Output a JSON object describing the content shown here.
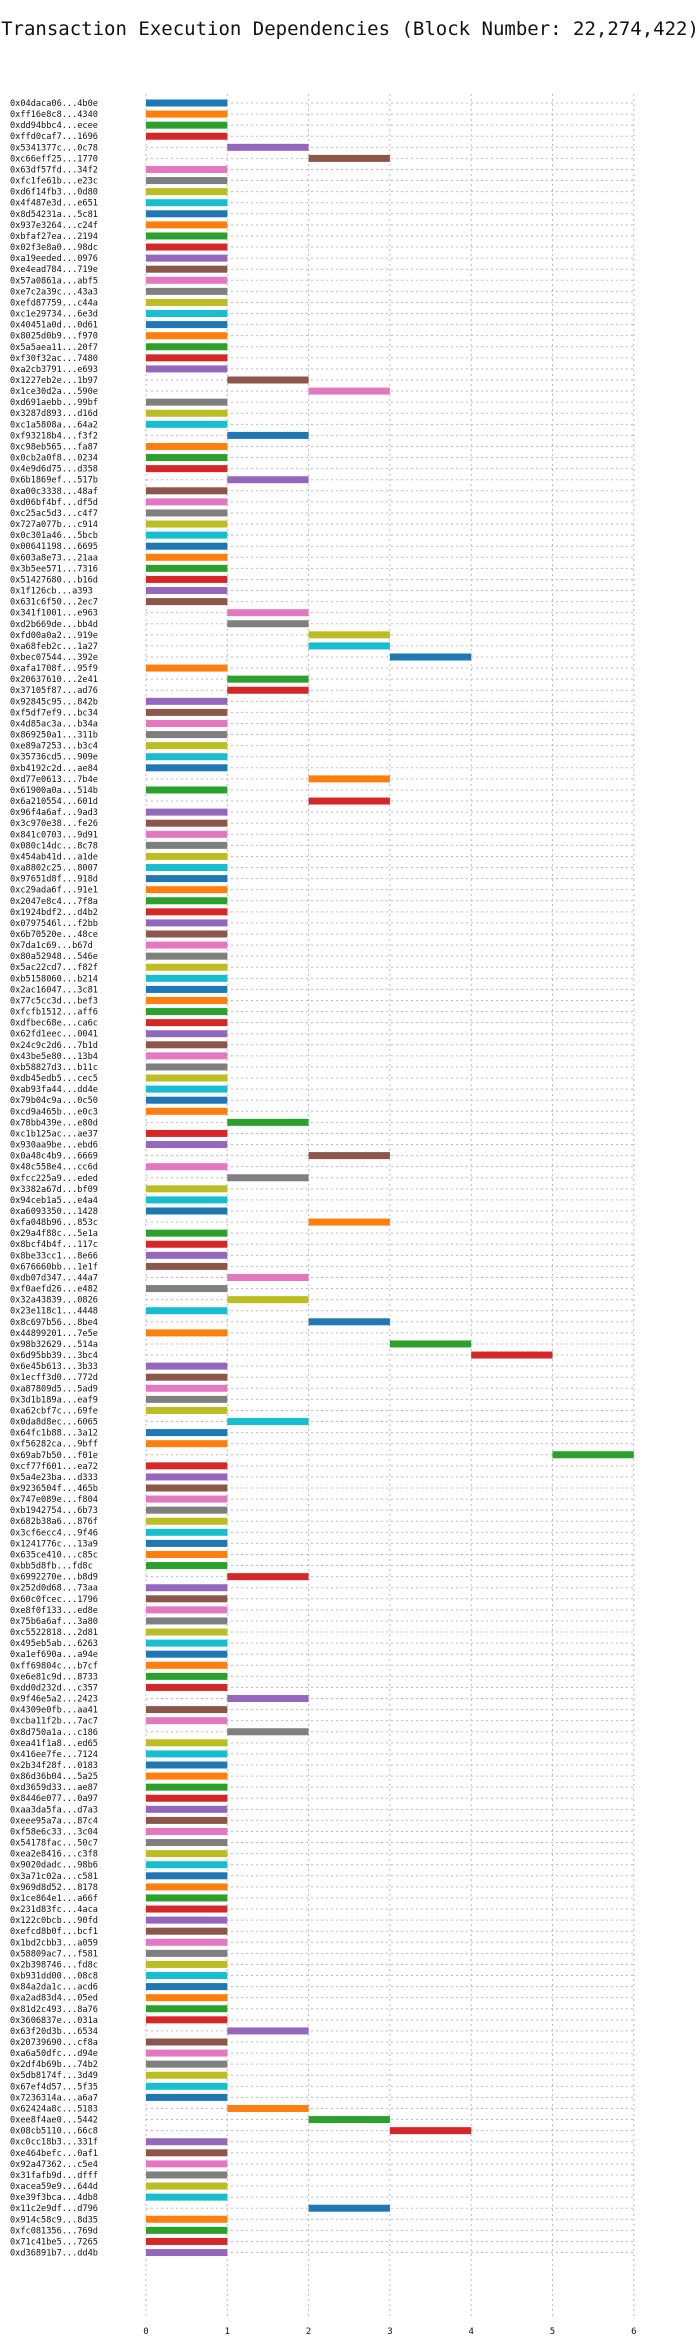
{
  "chart_data": {
    "type": "bar",
    "orientation": "horizontal-gantt",
    "title": "Transaction Execution Dependencies (Block Number: 22,274,422)",
    "xlabel": "",
    "ylabel": "",
    "xlim": [
      0,
      6
    ],
    "xticks": [
      0,
      1,
      2,
      3,
      4,
      5,
      6
    ],
    "grid": true,
    "palette": [
      "#1f77b4",
      "#ff7f0e",
      "#2ca02c",
      "#d62728",
      "#9467bd",
      "#8c564b",
      "#e377c2",
      "#7f7f7f",
      "#bcbd22",
      "#17becf"
    ],
    "transactions": [
      {
        "label": "0x04daca06...4b0e",
        "start": 0,
        "end": 1
      },
      {
        "label": "0xff16e8c8...4340",
        "start": 0,
        "end": 1
      },
      {
        "label": "0xdd94bbc4...ecee",
        "start": 0,
        "end": 1
      },
      {
        "label": "0xffd0caf7...1696",
        "start": 0,
        "end": 1
      },
      {
        "label": "0x5341377c...0c78",
        "start": 1,
        "end": 2
      },
      {
        "label": "0xc66eff25...1770",
        "start": 2,
        "end": 3
      },
      {
        "label": "0x63df57fd...34f2",
        "start": 0,
        "end": 1
      },
      {
        "label": "0xfc1fe61b...e23c",
        "start": 0,
        "end": 1
      },
      {
        "label": "0xd6f14fb3...0d80",
        "start": 0,
        "end": 1
      },
      {
        "label": "0x4f487e3d...e651",
        "start": 0,
        "end": 1
      },
      {
        "label": "0x8d54231a...5c81",
        "start": 0,
        "end": 1
      },
      {
        "label": "0x937e3264...c24f",
        "start": 0,
        "end": 1
      },
      {
        "label": "0xbfaf27ea...2194",
        "start": 0,
        "end": 1
      },
      {
        "label": "0x02f3e8a0...98dc",
        "start": 0,
        "end": 1
      },
      {
        "label": "0xa19eeded...0976",
        "start": 0,
        "end": 1
      },
      {
        "label": "0xe4ead784...719e",
        "start": 0,
        "end": 1
      },
      {
        "label": "0x57a0861a...abf5",
        "start": 0,
        "end": 1
      },
      {
        "label": "0xe7c2a39c...43a3",
        "start": 0,
        "end": 1
      },
      {
        "label": "0xefd87759...c44a",
        "start": 0,
        "end": 1
      },
      {
        "label": "0xc1e29734...6e3d",
        "start": 0,
        "end": 1
      },
      {
        "label": "0x40451a0d...0d61",
        "start": 0,
        "end": 1
      },
      {
        "label": "0x8025d0b9...f970",
        "start": 0,
        "end": 1
      },
      {
        "label": "0x5a5aea11...20f7",
        "start": 0,
        "end": 1
      },
      {
        "label": "0xf30f32ac...7480",
        "start": 0,
        "end": 1
      },
      {
        "label": "0xa2cb3791...e693",
        "start": 0,
        "end": 1
      },
      {
        "label": "0x1227eb2e...1b97",
        "start": 1,
        "end": 2
      },
      {
        "label": "0x1ce30d2a...590e",
        "start": 2,
        "end": 3
      },
      {
        "label": "0xd691aebb...99bf",
        "start": 0,
        "end": 1
      },
      {
        "label": "0x3287d893...d16d",
        "start": 0,
        "end": 1
      },
      {
        "label": "0xc1a5808a...64a2",
        "start": 0,
        "end": 1
      },
      {
        "label": "0xf93218b4...f3f2",
        "start": 1,
        "end": 2
      },
      {
        "label": "0xc98eb565...fa87",
        "start": 0,
        "end": 1
      },
      {
        "label": "0x0cb2a0f8...0234",
        "start": 0,
        "end": 1
      },
      {
        "label": "0x4e9d6d75...d358",
        "start": 0,
        "end": 1
      },
      {
        "label": "0x6b1869ef...517b",
        "start": 1,
        "end": 2
      },
      {
        "label": "0xa00c3338...48af",
        "start": 0,
        "end": 1
      },
      {
        "label": "0xd06bf4bf...df5d",
        "start": 0,
        "end": 1
      },
      {
        "label": "0xc25ac5d3...c4f7",
        "start": 0,
        "end": 1
      },
      {
        "label": "0x727a077b...c914",
        "start": 0,
        "end": 1
      },
      {
        "label": "0x0c301a46...5bcb",
        "start": 0,
        "end": 1
      },
      {
        "label": "0x00641198...6695",
        "start": 0,
        "end": 1
      },
      {
        "label": "0x603a8e73...21aa",
        "start": 0,
        "end": 1
      },
      {
        "label": "0x3b5ee571...7316",
        "start": 0,
        "end": 1
      },
      {
        "label": "0x51427680...b16d",
        "start": 0,
        "end": 1
      },
      {
        "label": "0x1f126cb...a393",
        "start": 0,
        "end": 1
      },
      {
        "label": "0x631c6f50...2ec7",
        "start": 0,
        "end": 1
      },
      {
        "label": "0x341f1001...e963",
        "start": 1,
        "end": 2
      },
      {
        "label": "0xd2b669de...bb4d",
        "start": 1,
        "end": 2
      },
      {
        "label": "0xfd00a0a2...919e",
        "start": 2,
        "end": 3
      },
      {
        "label": "0xa68feb2c...1a27",
        "start": 2,
        "end": 3
      },
      {
        "label": "0xbec07544...392e",
        "start": 3,
        "end": 4
      },
      {
        "label": "0xafa1708f...95f9",
        "start": 0,
        "end": 1
      },
      {
        "label": "0x20637610...2e41",
        "start": 1,
        "end": 2
      },
      {
        "label": "0x37105f87...ad76",
        "start": 1,
        "end": 2
      },
      {
        "label": "0x92845c95...842b",
        "start": 0,
        "end": 1
      },
      {
        "label": "0xf5df7ef9...bc34",
        "start": 0,
        "end": 1
      },
      {
        "label": "0x4d85ac3a...b34a",
        "start": 0,
        "end": 1
      },
      {
        "label": "0x869250a1...311b",
        "start": 0,
        "end": 1
      },
      {
        "label": "0xe89a7253...b3c4",
        "start": 0,
        "end": 1
      },
      {
        "label": "0x35736cd5...909e",
        "start": 0,
        "end": 1
      },
      {
        "label": "0xb4192c2d...ae84",
        "start": 0,
        "end": 1
      },
      {
        "label": "0xd77e0613...7b4e",
        "start": 2,
        "end": 3
      },
      {
        "label": "0x61900a0a...514b",
        "start": 0,
        "end": 1
      },
      {
        "label": "0x6a210554...601d",
        "start": 2,
        "end": 3
      },
      {
        "label": "0x96f4a6af...9ad3",
        "start": 0,
        "end": 1
      },
      {
        "label": "0x3c970e38...fe26",
        "start": 0,
        "end": 1
      },
      {
        "label": "0x841c0703...9d91",
        "start": 0,
        "end": 1
      },
      {
        "label": "0x080c14dc...8c78",
        "start": 0,
        "end": 1
      },
      {
        "label": "0x454ab41d...a1de",
        "start": 0,
        "end": 1
      },
      {
        "label": "0xa8802c25...8007",
        "start": 0,
        "end": 1
      },
      {
        "label": "0x97651d8f...918d",
        "start": 0,
        "end": 1
      },
      {
        "label": "0xc29ada6f...91e1",
        "start": 0,
        "end": 1
      },
      {
        "label": "0x2047e8c4...7f8a",
        "start": 0,
        "end": 1
      },
      {
        "label": "0x1924bdf2...d4b2",
        "start": 0,
        "end": 1
      },
      {
        "label": "0x0797546l...f2bb",
        "start": 0,
        "end": 1
      },
      {
        "label": "0x6b70520e...48ce",
        "start": 0,
        "end": 1
      },
      {
        "label": "0x7da1c69...b67d",
        "start": 0,
        "end": 1
      },
      {
        "label": "0x80a52948...546e",
        "start": 0,
        "end": 1
      },
      {
        "label": "0x5ac22cd7...f82f",
        "start": 0,
        "end": 1
      },
      {
        "label": "0xb5158060...b214",
        "start": 0,
        "end": 1
      },
      {
        "label": "0x2ac16047...3c81",
        "start": 0,
        "end": 1
      },
      {
        "label": "0x77c5cc3d...bef3",
        "start": 0,
        "end": 1
      },
      {
        "label": "0xfcfb1512...aff6",
        "start": 0,
        "end": 1
      },
      {
        "label": "0xdfbec68e...ca6c",
        "start": 0,
        "end": 1
      },
      {
        "label": "0x62fd1eec...0041",
        "start": 0,
        "end": 1
      },
      {
        "label": "0x24c9c2d6...7b1d",
        "start": 0,
        "end": 1
      },
      {
        "label": "0x43be5e80...13b4",
        "start": 0,
        "end": 1
      },
      {
        "label": "0xb58827d3...b11c",
        "start": 0,
        "end": 1
      },
      {
        "label": "0xdb45edb5...cec5",
        "start": 0,
        "end": 1
      },
      {
        "label": "0xab93fa44...dd4e",
        "start": 0,
        "end": 1
      },
      {
        "label": "0x79b04c9a...0c50",
        "start": 0,
        "end": 1
      },
      {
        "label": "0xcd9a465b...e0c3",
        "start": 0,
        "end": 1
      },
      {
        "label": "0x78bb439e...e80d",
        "start": 1,
        "end": 2
      },
      {
        "label": "0xc1b125ac...ae37",
        "start": 0,
        "end": 1
      },
      {
        "label": "0x930aa9be...ebd6",
        "start": 0,
        "end": 1
      },
      {
        "label": "0x0a48c4b9...6669",
        "start": 2,
        "end": 3
      },
      {
        "label": "0x48c558e4...cc6d",
        "start": 0,
        "end": 1
      },
      {
        "label": "0xfcc225a9...eded",
        "start": 1,
        "end": 2
      },
      {
        "label": "0x3382a67d...bf09",
        "start": 0,
        "end": 1
      },
      {
        "label": "0x94ceb1a5...e4a4",
        "start": 0,
        "end": 1
      },
      {
        "label": "0xa6093350...1428",
        "start": 0,
        "end": 1
      },
      {
        "label": "0xfa048b96...853c",
        "start": 2,
        "end": 3
      },
      {
        "label": "0x29a4f88c...5e1a",
        "start": 0,
        "end": 1
      },
      {
        "label": "0x8bcf4b4f...117c",
        "start": 0,
        "end": 1
      },
      {
        "label": "0x8be33cc1...8e66",
        "start": 0,
        "end": 1
      },
      {
        "label": "0x676660bb...1e1f",
        "start": 0,
        "end": 1
      },
      {
        "label": "0xdb07d347...44a7",
        "start": 1,
        "end": 2
      },
      {
        "label": "0xf0aefd26...e482",
        "start": 0,
        "end": 1
      },
      {
        "label": "0x32a43839...0826",
        "start": 1,
        "end": 2
      },
      {
        "label": "0x23e118c1...4448",
        "start": 0,
        "end": 1
      },
      {
        "label": "0x8c697b56...8be4",
        "start": 2,
        "end": 3
      },
      {
        "label": "0x44899201...7e5e",
        "start": 0,
        "end": 1
      },
      {
        "label": "0x98b32629...514a",
        "start": 3,
        "end": 4
      },
      {
        "label": "0x6d95bb39...3bc4",
        "start": 4,
        "end": 5
      },
      {
        "label": "0x6e45b613...3b33",
        "start": 0,
        "end": 1
      },
      {
        "label": "0x1ecff3d0...772d",
        "start": 0,
        "end": 1
      },
      {
        "label": "0xa87809d5...5ad9",
        "start": 0,
        "end": 1
      },
      {
        "label": "0x3d1b189a...eaf9",
        "start": 0,
        "end": 1
      },
      {
        "label": "0xa62cbf7c...69fe",
        "start": 0,
        "end": 1
      },
      {
        "label": "0x0da8d8ec...6065",
        "start": 1,
        "end": 2
      },
      {
        "label": "0x64fc1b88...3a12",
        "start": 0,
        "end": 1
      },
      {
        "label": "0xf56282ca...9bff",
        "start": 0,
        "end": 1
      },
      {
        "label": "0x69ab7b50...f01e",
        "start": 5,
        "end": 6
      },
      {
        "label": "0xcf77f601...ea72",
        "start": 0,
        "end": 1
      },
      {
        "label": "0x5a4e23ba...d333",
        "start": 0,
        "end": 1
      },
      {
        "label": "0x9236504f...465b",
        "start": 0,
        "end": 1
      },
      {
        "label": "0x747e089e...f804",
        "start": 0,
        "end": 1
      },
      {
        "label": "0xb1942754...6b73",
        "start": 0,
        "end": 1
      },
      {
        "label": "0x682b38a6...876f",
        "start": 0,
        "end": 1
      },
      {
        "label": "0x3cf6ecc4...9f46",
        "start": 0,
        "end": 1
      },
      {
        "label": "0x1241776c...13a9",
        "start": 0,
        "end": 1
      },
      {
        "label": "0x635ce410...c85c",
        "start": 0,
        "end": 1
      },
      {
        "label": "0xbb5d8fb...fd8c",
        "start": 0,
        "end": 1
      },
      {
        "label": "0x6992270e...b8d9",
        "start": 1,
        "end": 2
      },
      {
        "label": "0x252d0d68...73aa",
        "start": 0,
        "end": 1
      },
      {
        "label": "0x60c0fcec...1796",
        "start": 0,
        "end": 1
      },
      {
        "label": "0xe8f0f133...ed8e",
        "start": 0,
        "end": 1
      },
      {
        "label": "0x75b6a6af...3a80",
        "start": 0,
        "end": 1
      },
      {
        "label": "0xc5522818...2d81",
        "start": 0,
        "end": 1
      },
      {
        "label": "0x495eb5ab...6263",
        "start": 0,
        "end": 1
      },
      {
        "label": "0xa1ef690a...a94e",
        "start": 0,
        "end": 1
      },
      {
        "label": "0xff69804c...b7cf",
        "start": 0,
        "end": 1
      },
      {
        "label": "0xe6e81c9d...8733",
        "start": 0,
        "end": 1
      },
      {
        "label": "0xdd0d232d...c357",
        "start": 0,
        "end": 1
      },
      {
        "label": "0x9f46e5a2...2423",
        "start": 1,
        "end": 2
      },
      {
        "label": "0x4309e0fb...aa41",
        "start": 0,
        "end": 1
      },
      {
        "label": "0xcba11f2b...7ac7",
        "start": 0,
        "end": 1
      },
      {
        "label": "0x8d750a1a...c186",
        "start": 1,
        "end": 2
      },
      {
        "label": "0xea41f1a8...ed65",
        "start": 0,
        "end": 1
      },
      {
        "label": "0x416ee7fe...7124",
        "start": 0,
        "end": 1
      },
      {
        "label": "0x2b34f28f...0183",
        "start": 0,
        "end": 1
      },
      {
        "label": "0x86d36b04...5a25",
        "start": 0,
        "end": 1
      },
      {
        "label": "0xd3659d33...ae87",
        "start": 0,
        "end": 1
      },
      {
        "label": "0x8446e077...0a97",
        "start": 0,
        "end": 1
      },
      {
        "label": "0xaa3da5fa...d7a3",
        "start": 0,
        "end": 1
      },
      {
        "label": "0xeee95a7a...87c4",
        "start": 0,
        "end": 1
      },
      {
        "label": "0xf58e6c33...3c04",
        "start": 0,
        "end": 1
      },
      {
        "label": "0x54178fac...50c7",
        "start": 0,
        "end": 1
      },
      {
        "label": "0xea2e8416...c3f8",
        "start": 0,
        "end": 1
      },
      {
        "label": "0x9020dadc...98b6",
        "start": 0,
        "end": 1
      },
      {
        "label": "0x3a71c02a...c581",
        "start": 0,
        "end": 1
      },
      {
        "label": "0x969d8d52...8178",
        "start": 0,
        "end": 1
      },
      {
        "label": "0x1ce864e1...a66f",
        "start": 0,
        "end": 1
      },
      {
        "label": "0x231d83fc...4aca",
        "start": 0,
        "end": 1
      },
      {
        "label": "0x122c0bcb...90fd",
        "start": 0,
        "end": 1
      },
      {
        "label": "0xefcd8b0f...bcf1",
        "start": 0,
        "end": 1
      },
      {
        "label": "0x1bd2cbb3...a059",
        "start": 0,
        "end": 1
      },
      {
        "label": "0x58809ac7...f581",
        "start": 0,
        "end": 1
      },
      {
        "label": "0x2b398746...fd8c",
        "start": 0,
        "end": 1
      },
      {
        "label": "0xb931dd00...08c8",
        "start": 0,
        "end": 1
      },
      {
        "label": "0x84a2da1c...acd6",
        "start": 0,
        "end": 1
      },
      {
        "label": "0xa2ad83d4...05ed",
        "start": 0,
        "end": 1
      },
      {
        "label": "0x81d2c493...8a76",
        "start": 0,
        "end": 1
      },
      {
        "label": "0x3606837e...031a",
        "start": 0,
        "end": 1
      },
      {
        "label": "0x63f20d3b...6534",
        "start": 1,
        "end": 2
      },
      {
        "label": "0x20739690...cf8a",
        "start": 0,
        "end": 1
      },
      {
        "label": "0xa6a50dfc...d94e",
        "start": 0,
        "end": 1
      },
      {
        "label": "0x2df4b69b...74b2",
        "start": 0,
        "end": 1
      },
      {
        "label": "0x5db8174f...3d49",
        "start": 0,
        "end": 1
      },
      {
        "label": "0x67ef4d57...5f35",
        "start": 0,
        "end": 1
      },
      {
        "label": "0x7236314a...a6a7",
        "start": 0,
        "end": 1
      },
      {
        "label": "0x62424a8c...5183",
        "start": 1,
        "end": 2
      },
      {
        "label": "0xee8f4ae0...5442",
        "start": 2,
        "end": 3
      },
      {
        "label": "0x08cb5110...66c8",
        "start": 3,
        "end": 4
      },
      {
        "label": "0xc0cc18b3...331f",
        "start": 0,
        "end": 1
      },
      {
        "label": "0xe464befc...0af1",
        "start": 0,
        "end": 1
      },
      {
        "label": "0x92a47362...c5e4",
        "start": 0,
        "end": 1
      },
      {
        "label": "0x31fafb9d...dfff",
        "start": 0,
        "end": 1
      },
      {
        "label": "0xacea59e9...644d",
        "start": 0,
        "end": 1
      },
      {
        "label": "0xe39f3bca...4db8",
        "start": 0,
        "end": 1
      },
      {
        "label": "0x11c2e9df...d796",
        "start": 2,
        "end": 3
      },
      {
        "label": "0x914c58c9...8d35",
        "start": 0,
        "end": 1
      },
      {
        "label": "0xfc081356...769d",
        "start": 0,
        "end": 1
      },
      {
        "label": "0x71c41be5...7265",
        "start": 0,
        "end": 1
      },
      {
        "label": "0xd36891b7...dd4b",
        "start": 0,
        "end": 1
      }
    ]
  }
}
